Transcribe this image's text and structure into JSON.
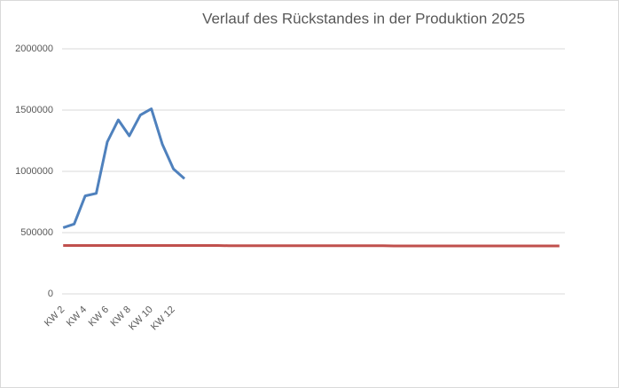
{
  "chart_data": {
    "type": "line",
    "title": "Verlauf des Rückstandes in der Produktion 2025",
    "categories": [
      "KW 2",
      null,
      "KW 4",
      null,
      "KW 6",
      null,
      "KW 8",
      null,
      "KW 10",
      null,
      "KW 12",
      null,
      null,
      null,
      null,
      null,
      null,
      null,
      null,
      null,
      null,
      null,
      null,
      null,
      null,
      null,
      null,
      null,
      null,
      null,
      null,
      null,
      null,
      null,
      null,
      null,
      null,
      null,
      null,
      null,
      null,
      null,
      null,
      null,
      null,
      null
    ],
    "series": [
      {
        "color": "#4f81bd",
        "values": [
          540000,
          570000,
          800000,
          820000,
          1240000,
          1420000,
          1290000,
          1460000,
          1510000,
          1220000,
          1020000,
          940000,
          null,
          null,
          null,
          null,
          null,
          null,
          null,
          null,
          null,
          null,
          null,
          null,
          null,
          null,
          null,
          null,
          null,
          null,
          null,
          null,
          null,
          null,
          null,
          null,
          null,
          null,
          null,
          null,
          null,
          null,
          null,
          null,
          null,
          null
        ]
      },
      {
        "color": "#c0504d",
        "values": [
          395000,
          395000,
          395000,
          395000,
          395000,
          395000,
          395000,
          395000,
          395000,
          395000,
          395000,
          395000,
          395000,
          395000,
          395000,
          393000,
          393000,
          393000,
          393000,
          393000,
          393000,
          393000,
          393000,
          393000,
          393000,
          393000,
          393000,
          393000,
          393000,
          393000,
          391000,
          391000,
          391000,
          391000,
          391000,
          391000,
          391000,
          391000,
          391000,
          391000,
          391000,
          391000,
          391000,
          391000,
          391000,
          391000
        ]
      }
    ],
    "ylim": [
      0,
      2000000
    ],
    "yticks": [
      0,
      500000,
      1000000,
      1500000,
      2000000
    ],
    "grid": true
  }
}
